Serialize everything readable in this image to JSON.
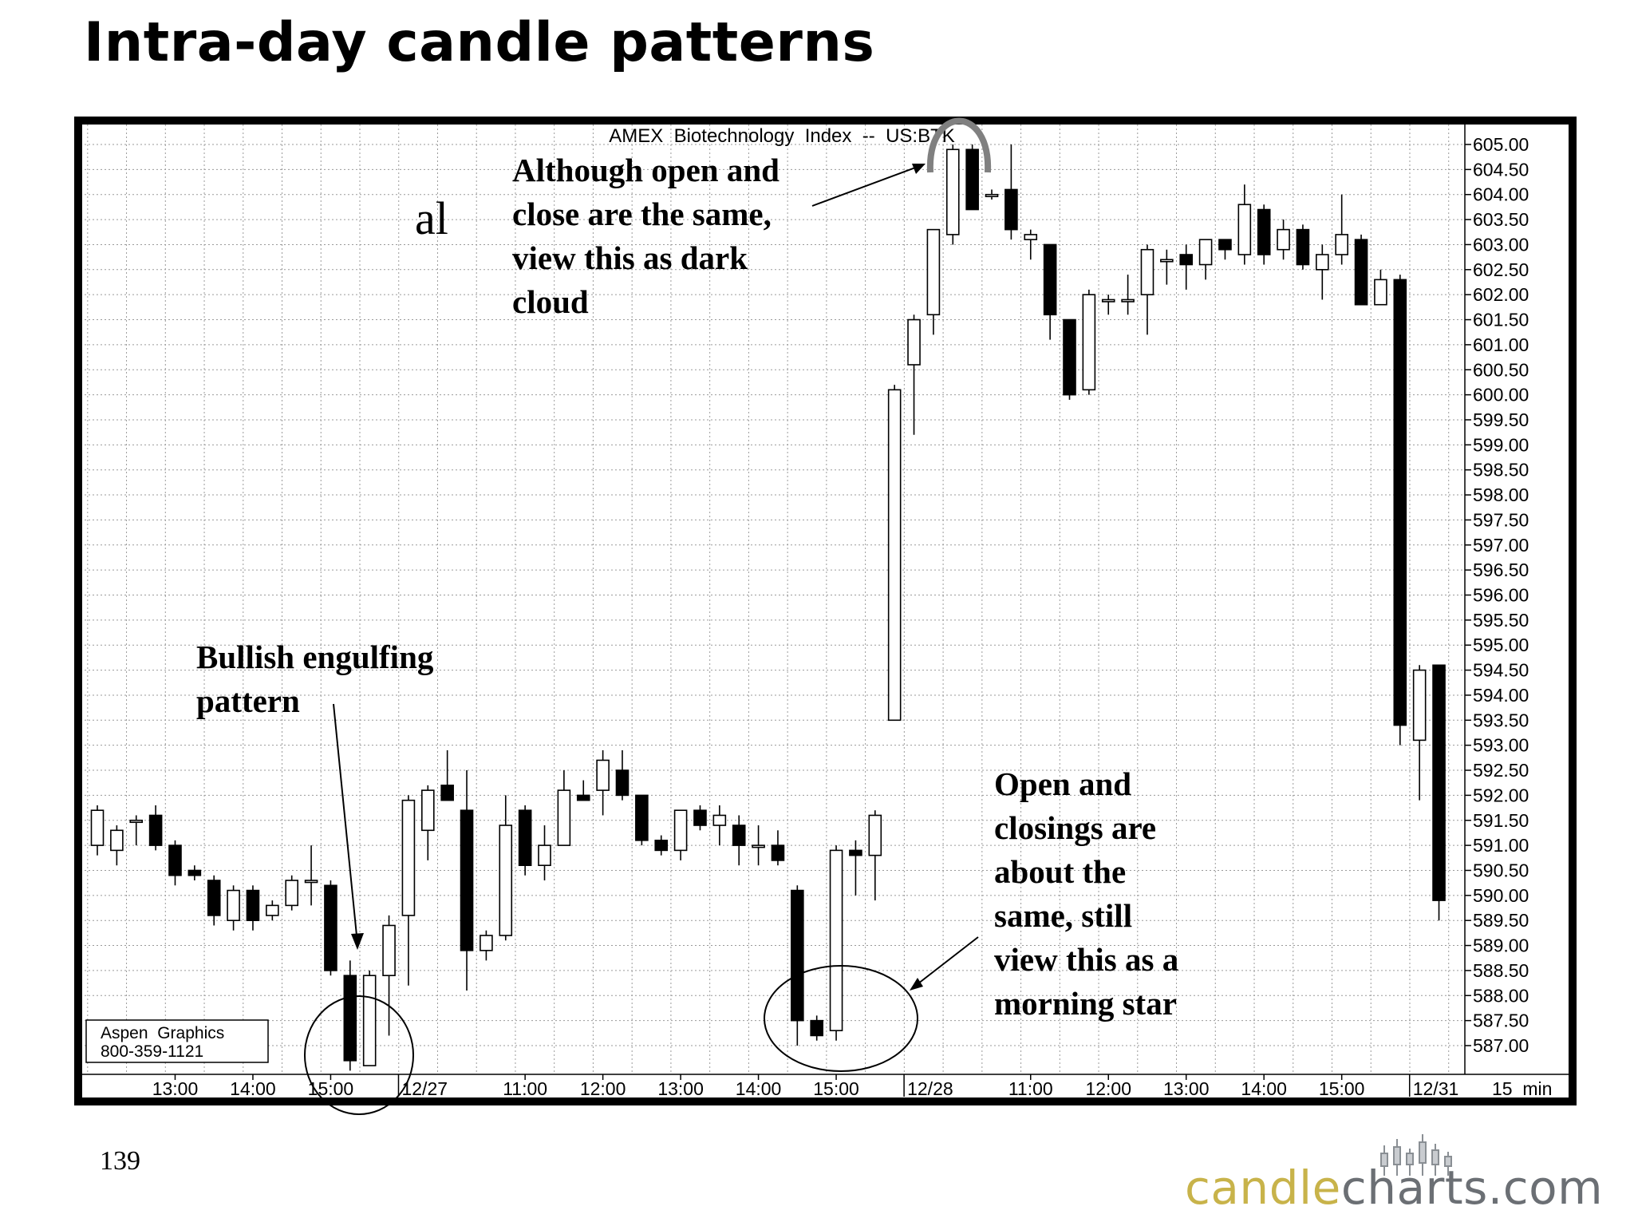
{
  "title": "Intra-day candle patterns",
  "page_number": "139",
  "stray_text": "al",
  "logo": {
    "text_primary": "candle",
    "text_secondary": "charts.com",
    "color_primary": "#c8b34a",
    "color_secondary": "#6b6f74"
  },
  "vendor_box": {
    "line1": "Aspen  Graphics",
    "line2": "800-359-1121"
  },
  "annotations": {
    "dark_cloud": "Although open and\nclose are the same,\nview this as dark\ncloud",
    "bullish_engulfing": "Bullish engulfing\npattern",
    "morning_star": "Open and\nclosings are\nabout the\nsame, still\nview this as a\nmorning star"
  },
  "chart_data": {
    "type": "candlestick",
    "title": "AMEX  Biotechnology  Index  --  US:BTK",
    "interval_label": "15  min",
    "ylim": [
      586.5,
      605.5
    ],
    "y_tick_labels": [
      "605.00",
      "604.50",
      "604.00",
      "603.50",
      "603.00",
      "602.50",
      "602.00",
      "601.50",
      "601.00",
      "600.50",
      "600.00",
      "599.50",
      "599.00",
      "598.50",
      "598.00",
      "597.50",
      "597.00",
      "596.50",
      "596.00",
      "595.50",
      "595.00",
      "594.50",
      "594.00",
      "593.50",
      "593.00",
      "592.50",
      "592.00",
      "591.50",
      "591.00",
      "590.50",
      "590.00",
      "589.50",
      "589.00",
      "588.50",
      "588.00",
      "587.50",
      "587.00"
    ],
    "x_tick_labels": [
      {
        "label": "13:00",
        "index": 4
      },
      {
        "label": "14:00",
        "index": 8
      },
      {
        "label": "15:00",
        "index": 12
      },
      {
        "label": "12/27",
        "index": 15.9
      },
      {
        "label": "11:00",
        "index": 22
      },
      {
        "label": "12:00",
        "index": 26
      },
      {
        "label": "13:00",
        "index": 30
      },
      {
        "label": "14:00",
        "index": 34
      },
      {
        "label": "15:00",
        "index": 38
      },
      {
        "label": "12/28",
        "index": 41.9
      },
      {
        "label": "11:00",
        "index": 48
      },
      {
        "label": "12:00",
        "index": 52
      },
      {
        "label": "13:00",
        "index": 56
      },
      {
        "label": "14:00",
        "index": 60
      },
      {
        "label": "15:00",
        "index": 64
      },
      {
        "label": "12/31",
        "index": 67.9
      }
    ],
    "candles": [
      {
        "o": 591.0,
        "h": 591.8,
        "l": 590.8,
        "c": 591.7
      },
      {
        "o": 590.9,
        "h": 591.4,
        "l": 590.6,
        "c": 591.3
      },
      {
        "o": 591.5,
        "h": 591.6,
        "l": 591.0,
        "c": 591.5
      },
      {
        "o": 591.6,
        "h": 591.8,
        "l": 590.9,
        "c": 591.0
      },
      {
        "o": 591.0,
        "h": 591.1,
        "l": 590.2,
        "c": 590.4
      },
      {
        "o": 590.5,
        "h": 590.6,
        "l": 590.3,
        "c": 590.4
      },
      {
        "o": 590.3,
        "h": 590.4,
        "l": 589.4,
        "c": 589.6
      },
      {
        "o": 589.5,
        "h": 590.2,
        "l": 589.3,
        "c": 590.1
      },
      {
        "o": 590.1,
        "h": 590.2,
        "l": 589.3,
        "c": 589.5
      },
      {
        "o": 589.6,
        "h": 589.9,
        "l": 589.5,
        "c": 589.8
      },
      {
        "o": 589.8,
        "h": 590.4,
        "l": 589.7,
        "c": 590.3
      },
      {
        "o": 590.3,
        "h": 591.0,
        "l": 589.8,
        "c": 590.3
      },
      {
        "o": 590.2,
        "h": 590.3,
        "l": 588.4,
        "c": 588.5
      },
      {
        "o": 588.4,
        "h": 588.7,
        "l": 586.5,
        "c": 586.7
      },
      {
        "o": 586.6,
        "h": 588.5,
        "l": 586.6,
        "c": 588.4
      },
      {
        "o": 588.4,
        "h": 589.6,
        "l": 587.2,
        "c": 589.4
      },
      {
        "o": 589.6,
        "h": 592.0,
        "l": 588.2,
        "c": 591.9
      },
      {
        "o": 591.3,
        "h": 592.2,
        "l": 590.7,
        "c": 592.1
      },
      {
        "o": 592.2,
        "h": 592.9,
        "l": 591.9,
        "c": 591.9
      },
      {
        "o": 591.7,
        "h": 592.5,
        "l": 588.1,
        "c": 588.9
      },
      {
        "o": 588.9,
        "h": 589.3,
        "l": 588.7,
        "c": 589.2
      },
      {
        "o": 589.2,
        "h": 592.0,
        "l": 589.1,
        "c": 591.4
      },
      {
        "o": 591.7,
        "h": 591.8,
        "l": 590.4,
        "c": 590.6
      },
      {
        "o": 590.6,
        "h": 591.4,
        "l": 590.3,
        "c": 591.0
      },
      {
        "o": 591.0,
        "h": 592.5,
        "l": 591.0,
        "c": 592.1
      },
      {
        "o": 592.0,
        "h": 592.3,
        "l": 591.9,
        "c": 591.9
      },
      {
        "o": 592.1,
        "h": 592.9,
        "l": 591.6,
        "c": 592.7
      },
      {
        "o": 592.5,
        "h": 592.9,
        "l": 591.9,
        "c": 592.0
      },
      {
        "o": 592.0,
        "h": 592.0,
        "l": 591.0,
        "c": 591.1
      },
      {
        "o": 591.1,
        "h": 591.2,
        "l": 590.8,
        "c": 590.9
      },
      {
        "o": 590.9,
        "h": 591.7,
        "l": 590.7,
        "c": 591.7
      },
      {
        "o": 591.7,
        "h": 591.8,
        "l": 591.3,
        "c": 591.4
      },
      {
        "o": 591.4,
        "h": 591.8,
        "l": 591.0,
        "c": 591.6
      },
      {
        "o": 591.4,
        "h": 591.6,
        "l": 590.6,
        "c": 591.0
      },
      {
        "o": 591.0,
        "h": 591.4,
        "l": 590.6,
        "c": 591.0
      },
      {
        "o": 591.0,
        "h": 591.3,
        "l": 590.6,
        "c": 590.7
      },
      {
        "o": 590.1,
        "h": 590.2,
        "l": 587.0,
        "c": 587.5
      },
      {
        "o": 587.5,
        "h": 587.6,
        "l": 587.1,
        "c": 587.2
      },
      {
        "o": 587.3,
        "h": 591.0,
        "l": 587.1,
        "c": 590.9
      },
      {
        "o": 590.9,
        "h": 591.1,
        "l": 590.0,
        "c": 590.8
      },
      {
        "o": 590.8,
        "h": 591.7,
        "l": 589.9,
        "c": 591.6
      },
      {
        "o": 593.5,
        "h": 600.2,
        "l": 593.5,
        "c": 600.1
      },
      {
        "o": 600.6,
        "h": 601.6,
        "l": 599.2,
        "c": 601.5
      },
      {
        "o": 601.6,
        "h": 603.3,
        "l": 601.2,
        "c": 603.3
      },
      {
        "o": 603.2,
        "h": 605.0,
        "l": 603.0,
        "c": 604.9
      },
      {
        "o": 604.9,
        "h": 605.0,
        "l": 603.7,
        "c": 603.7
      },
      {
        "o": 604.0,
        "h": 604.1,
        "l": 603.9,
        "c": 604.0
      },
      {
        "o": 604.1,
        "h": 605.0,
        "l": 603.1,
        "c": 603.3
      },
      {
        "o": 603.1,
        "h": 603.3,
        "l": 602.7,
        "c": 603.2
      },
      {
        "o": 603.0,
        "h": 603.0,
        "l": 601.1,
        "c": 601.6
      },
      {
        "o": 601.5,
        "h": 601.5,
        "l": 599.9,
        "c": 600.0
      },
      {
        "o": 600.1,
        "h": 602.1,
        "l": 600.0,
        "c": 602.0
      },
      {
        "o": 601.9,
        "h": 602.0,
        "l": 601.6,
        "c": 601.9
      },
      {
        "o": 601.9,
        "h": 602.4,
        "l": 601.6,
        "c": 601.9
      },
      {
        "o": 602.0,
        "h": 603.0,
        "l": 601.2,
        "c": 602.9
      },
      {
        "o": 602.7,
        "h": 602.9,
        "l": 602.2,
        "c": 602.7
      },
      {
        "o": 602.8,
        "h": 603.0,
        "l": 602.1,
        "c": 602.6
      },
      {
        "o": 602.6,
        "h": 603.1,
        "l": 602.3,
        "c": 603.1
      },
      {
        "o": 603.1,
        "h": 603.1,
        "l": 602.7,
        "c": 602.9
      },
      {
        "o": 602.8,
        "h": 604.2,
        "l": 602.6,
        "c": 603.8
      },
      {
        "o": 603.7,
        "h": 603.8,
        "l": 602.6,
        "c": 602.8
      },
      {
        "o": 602.9,
        "h": 603.5,
        "l": 602.7,
        "c": 603.3
      },
      {
        "o": 603.3,
        "h": 603.4,
        "l": 602.5,
        "c": 602.6
      },
      {
        "o": 602.5,
        "h": 603.0,
        "l": 601.9,
        "c": 602.8
      },
      {
        "o": 602.8,
        "h": 604.0,
        "l": 602.6,
        "c": 603.2
      },
      {
        "o": 603.1,
        "h": 603.2,
        "l": 601.8,
        "c": 601.8
      },
      {
        "o": 601.8,
        "h": 602.5,
        "l": 601.8,
        "c": 602.3
      },
      {
        "o": 602.3,
        "h": 602.4,
        "l": 593.0,
        "c": 593.4
      },
      {
        "o": 593.1,
        "h": 594.6,
        "l": 591.9,
        "c": 594.5
      },
      {
        "o": 594.6,
        "h": 594.6,
        "l": 589.5,
        "c": 589.9
      }
    ]
  }
}
